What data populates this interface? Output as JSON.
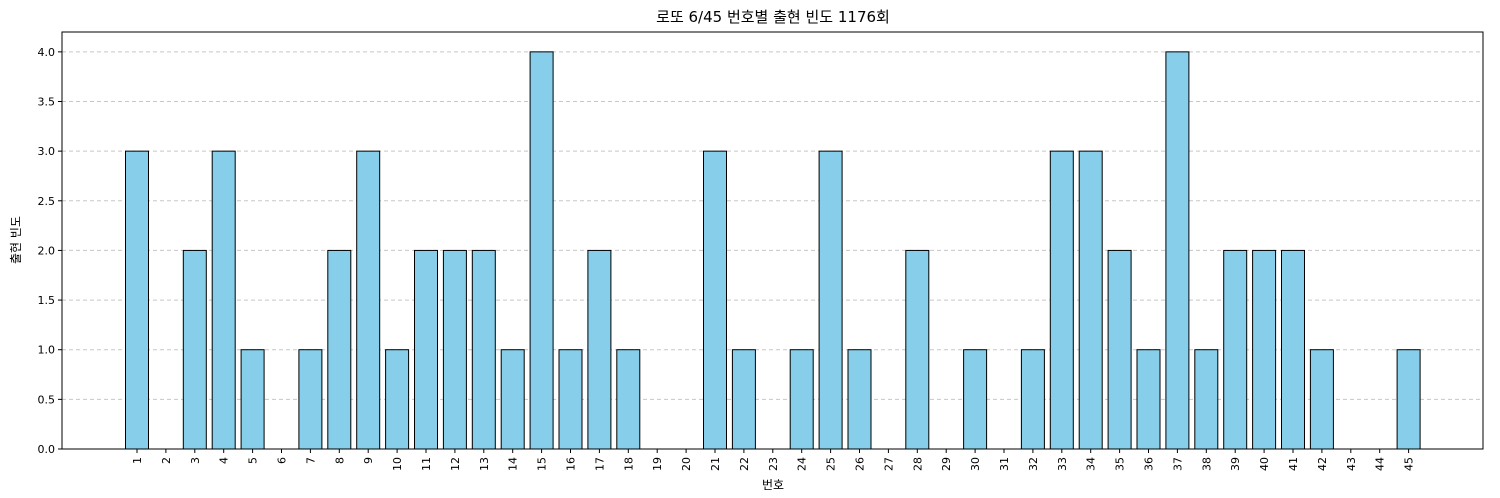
{
  "chart_data": {
    "type": "bar",
    "title": "로또 6/45 번호별 출현 빈도 1176회",
    "xlabel": "번호",
    "ylabel": "출현 빈도",
    "categories": [
      "1",
      "2",
      "3",
      "4",
      "5",
      "6",
      "7",
      "8",
      "9",
      "10",
      "11",
      "12",
      "13",
      "14",
      "15",
      "16",
      "17",
      "18",
      "19",
      "20",
      "21",
      "22",
      "23",
      "24",
      "25",
      "26",
      "27",
      "28",
      "29",
      "30",
      "31",
      "32",
      "33",
      "34",
      "35",
      "36",
      "37",
      "38",
      "39",
      "40",
      "41",
      "42",
      "43",
      "44",
      "45"
    ],
    "values": [
      3,
      0,
      2,
      3,
      1,
      0,
      1,
      2,
      3,
      1,
      2,
      2,
      2,
      1,
      4,
      1,
      2,
      1,
      0,
      0,
      3,
      1,
      0,
      1,
      3,
      1,
      0,
      2,
      0,
      1,
      0,
      1,
      3,
      3,
      2,
      1,
      4,
      1,
      2,
      2,
      2,
      1,
      0,
      0,
      1
    ],
    "ylim": [
      0,
      4.2
    ],
    "yticks": [
      "0.0",
      "0.5",
      "1.0",
      "1.5",
      "2.0",
      "2.5",
      "3.0",
      "3.5",
      "4.0"
    ],
    "grid": "y-dashed",
    "bar_color": "#87ceeb",
    "edge_color": "#000000"
  }
}
